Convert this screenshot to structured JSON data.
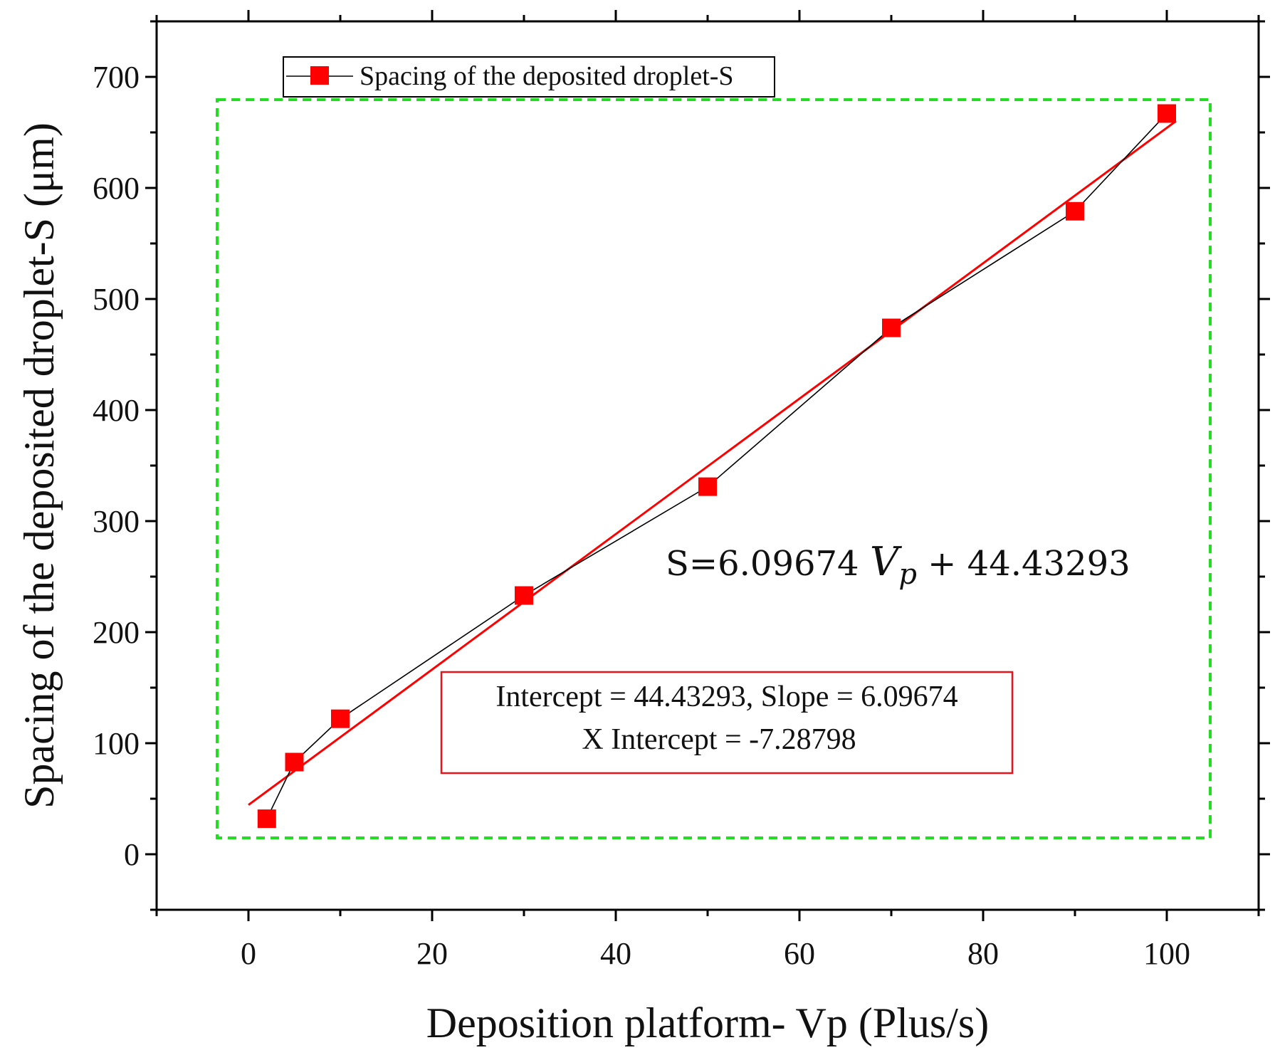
{
  "chart_data": {
    "type": "scatter",
    "title": "",
    "xlabel": "Deposition platform- Vp (Plus/s)",
    "ylabel": "Spacing of the deposited droplet-S (μm)",
    "xlim": [
      -10,
      110
    ],
    "ylim": [
      -50,
      750
    ],
    "xticks": [
      0,
      20,
      40,
      60,
      80,
      100
    ],
    "yticks": [
      0,
      100,
      200,
      300,
      400,
      500,
      600,
      700
    ],
    "grid": false,
    "legend_position": "top-left",
    "series": [
      {
        "name": "Spacing of the deposited droplet-S",
        "marker": "square",
        "color": "#ff0000",
        "line_color": "#000000",
        "x": [
          2,
          5,
          10,
          30,
          50,
          70,
          90,
          100
        ],
        "y": [
          32,
          83,
          122,
          233,
          331,
          474,
          579,
          667
        ]
      }
    ],
    "fit": {
      "type": "linear",
      "color": "#ff0000",
      "x_range": [
        0,
        101
      ],
      "slope": 6.09674,
      "intercept": 44.43293
    },
    "annotations": {
      "equation": {
        "prefix": "S=6.09674 ",
        "var": "V",
        "sub": "p",
        "suffix": " + 44.43293"
      },
      "stats_line1": "Intercept = 44.43293, Slope = 6.09674",
      "stats_line2": "X Intercept = -7.28798",
      "stats_border_color": "#e8141c",
      "highlight_color": "#22dd22"
    }
  }
}
